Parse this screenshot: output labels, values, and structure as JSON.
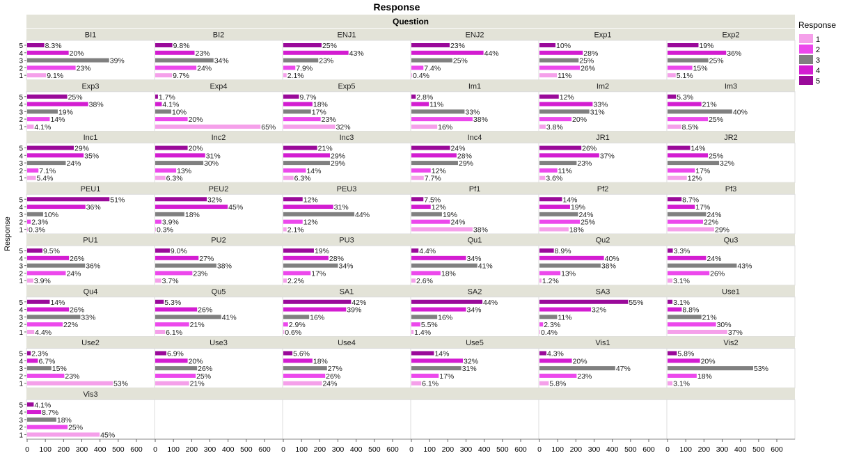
{
  "chart_data": {
    "type": "bar",
    "orientation": "horizontal",
    "title": "Response",
    "facet_header": "Question",
    "ylabel": "Response",
    "legend": {
      "title": "Response",
      "placement": "right",
      "items": [
        {
          "label": "1",
          "color": "#f5a0ea"
        },
        {
          "label": "2",
          "color": "#ec48ec"
        },
        {
          "label": "3",
          "color": "#808080"
        },
        {
          "label": "4",
          "color": "#d31dd1"
        },
        {
          "label": "5",
          "color": "#9a0a9a"
        }
      ]
    },
    "categories": [
      "5",
      "4",
      "3",
      "2",
      "1"
    ],
    "xlim": [
      0,
      600
    ],
    "xticks": [
      "0",
      "100",
      "200",
      "300",
      "400",
      "500",
      "600"
    ],
    "grid": true,
    "panels": [
      {
        "name": "BI1",
        "values": [
          94,
          228,
          450,
          266,
          104
        ],
        "labels": [
          "8.3%",
          "20%",
          "39%",
          "23%",
          "9.1%"
        ]
      },
      {
        "name": "BI2",
        "values": [
          94,
          216,
          320,
          226,
          92
        ],
        "labels": [
          "9.8%",
          "23%",
          "34%",
          "24%",
          "9.7%"
        ]
      },
      {
        "name": "ENJ1",
        "values": [
          210,
          358,
          192,
          66,
          18
        ],
        "labels": [
          "25%",
          "43%",
          "23%",
          "7.9%",
          "2.1%"
        ]
      },
      {
        "name": "ENJ2",
        "values": [
          210,
          396,
          225,
          66,
          4
        ],
        "labels": [
          "23%",
          "44%",
          "25%",
          "7.4%",
          "0.4%"
        ]
      },
      {
        "name": "Exp1",
        "values": [
          88,
          238,
          215,
          222,
          96
        ],
        "labels": [
          "10%",
          "28%",
          "25%",
          "26%",
          "11%"
        ]
      },
      {
        "name": "Exp2",
        "values": [
          170,
          322,
          224,
          136,
          45
        ],
        "labels": [
          "19%",
          "36%",
          "25%",
          "15%",
          "5.1%"
        ]
      },
      {
        "name": "Exp3",
        "values": [
          220,
          335,
          168,
          124,
          36
        ],
        "labels": [
          "25%",
          "38%",
          "19%",
          "14%",
          "4.1%"
        ]
      },
      {
        "name": "Exp4",
        "values": [
          15,
          36,
          88,
          178,
          578
        ],
        "labels": [
          "1.7%",
          "4.1%",
          "10%",
          "20%",
          "65%"
        ]
      },
      {
        "name": "Exp5",
        "values": [
          86,
          160,
          152,
          205,
          285
        ],
        "labels": [
          "9.7%",
          "18%",
          "17%",
          "23%",
          "32%"
        ]
      },
      {
        "name": "Im1",
        "values": [
          24,
          96,
          292,
          336,
          142
        ],
        "labels": [
          "2.8%",
          "11%",
          "33%",
          "38%",
          "16%"
        ]
      },
      {
        "name": "Im2",
        "values": [
          106,
          292,
          274,
          176,
          34
        ],
        "labels": [
          "12%",
          "33%",
          "31%",
          "20%",
          "3.8%"
        ]
      },
      {
        "name": "Im3",
        "values": [
          47,
          186,
          355,
          222,
          75
        ],
        "labels": [
          "5.3%",
          "21%",
          "40%",
          "25%",
          "8.5%"
        ]
      },
      {
        "name": "Inc1",
        "values": [
          256,
          310,
          212,
          62,
          48
        ],
        "labels": [
          "29%",
          "35%",
          "24%",
          "7.1%",
          "5.4%"
        ]
      },
      {
        "name": "Inc2",
        "values": [
          178,
          274,
          264,
          115,
          56
        ],
        "labels": [
          "20%",
          "31%",
          "30%",
          "13%",
          "6.3%"
        ]
      },
      {
        "name": "Inc3",
        "values": [
          186,
          256,
          256,
          124,
          56
        ],
        "labels": [
          "21%",
          "29%",
          "29%",
          "14%",
          "6.3%"
        ]
      },
      {
        "name": "Inc4",
        "values": [
          212,
          248,
          256,
          106,
          68
        ],
        "labels": [
          "24%",
          "28%",
          "29%",
          "12%",
          "7.7%"
        ]
      },
      {
        "name": "JR1",
        "values": [
          230,
          328,
          204,
          98,
          32
        ],
        "labels": [
          "26%",
          "37%",
          "23%",
          "11%",
          "3.6%"
        ]
      },
      {
        "name": "JR2",
        "values": [
          124,
          222,
          283,
          150,
          106
        ],
        "labels": [
          "14%",
          "25%",
          "32%",
          "17%",
          "12%"
        ]
      },
      {
        "name": "PEU1",
        "values": [
          452,
          320,
          88,
          20,
          3
        ],
        "labels": [
          "51%",
          "36%",
          "10%",
          "2.3%",
          "0.3%"
        ]
      },
      {
        "name": "PEU2",
        "values": [
          283,
          398,
          160,
          34,
          3
        ],
        "labels": [
          "32%",
          "45%",
          "18%",
          "3.9%",
          "0.3%"
        ]
      },
      {
        "name": "PEU3",
        "values": [
          106,
          274,
          390,
          106,
          18
        ],
        "labels": [
          "12%",
          "31%",
          "44%",
          "12%",
          "2.1%"
        ]
      },
      {
        "name": "Pf1",
        "values": [
          66,
          106,
          168,
          212,
          336
        ],
        "labels": [
          "7.5%",
          "12%",
          "19%",
          "24%",
          "38%"
        ]
      },
      {
        "name": "Pf2",
        "values": [
          124,
          168,
          212,
          222,
          160
        ],
        "labels": [
          "14%",
          "19%",
          "24%",
          "25%",
          "18%"
        ]
      },
      {
        "name": "Pf3",
        "values": [
          77,
          150,
          212,
          195,
          256
        ],
        "labels": [
          "8.7%",
          "17%",
          "24%",
          "22%",
          "29%"
        ]
      },
      {
        "name": "PU1",
        "values": [
          84,
          230,
          318,
          212,
          34
        ],
        "labels": [
          "9.5%",
          "26%",
          "36%",
          "24%",
          "3.9%"
        ]
      },
      {
        "name": "PU2",
        "values": [
          80,
          238,
          336,
          204,
          33
        ],
        "labels": [
          "9.0%",
          "27%",
          "38%",
          "23%",
          "3.7%"
        ]
      },
      {
        "name": "PU3",
        "values": [
          168,
          248,
          300,
          150,
          19
        ],
        "labels": [
          "19%",
          "28%",
          "34%",
          "17%",
          "2.2%"
        ]
      },
      {
        "name": "Qu1",
        "values": [
          39,
          300,
          362,
          160,
          23
        ],
        "labels": [
          "4.4%",
          "34%",
          "41%",
          "18%",
          "2.6%"
        ]
      },
      {
        "name": "Qu2",
        "values": [
          79,
          354,
          336,
          115,
          11
        ],
        "labels": [
          "8.9%",
          "40%",
          "38%",
          "13%",
          "1.2%"
        ]
      },
      {
        "name": "Qu3",
        "values": [
          29,
          212,
          380,
          230,
          27
        ],
        "labels": [
          "3.3%",
          "24%",
          "43%",
          "26%",
          "3.1%"
        ]
      },
      {
        "name": "Qu4",
        "values": [
          124,
          230,
          292,
          195,
          39
        ],
        "labels": [
          "14%",
          "26%",
          "33%",
          "22%",
          "4.4%"
        ]
      },
      {
        "name": "Qu5",
        "values": [
          47,
          230,
          362,
          186,
          54
        ],
        "labels": [
          "5.3%",
          "26%",
          "41%",
          "21%",
          "6.1%"
        ]
      },
      {
        "name": "SA1",
        "values": [
          372,
          345,
          142,
          26,
          5
        ],
        "labels": [
          "42%",
          "39%",
          "16%",
          "2.9%",
          "0.6%"
        ]
      },
      {
        "name": "SA2",
        "values": [
          390,
          300,
          142,
          49,
          12
        ],
        "labels": [
          "44%",
          "34%",
          "16%",
          "5.5%",
          "1.4%"
        ]
      },
      {
        "name": "SA3",
        "values": [
          487,
          283,
          97,
          20,
          4
        ],
        "labels": [
          "55%",
          "32%",
          "11%",
          "2.3%",
          "0.4%"
        ]
      },
      {
        "name": "Use1",
        "values": [
          27,
          78,
          186,
          266,
          328
        ],
        "labels": [
          "3.1%",
          "8.8%",
          "21%",
          "30%",
          "37%"
        ]
      },
      {
        "name": "Use2",
        "values": [
          20,
          59,
          133,
          204,
          470
        ],
        "labels": [
          "2.3%",
          "6.7%",
          "15%",
          "23%",
          "53%"
        ]
      },
      {
        "name": "Use3",
        "values": [
          61,
          178,
          230,
          222,
          186
        ],
        "labels": [
          "6.9%",
          "20%",
          "26%",
          "25%",
          "21%"
        ]
      },
      {
        "name": "Use4",
        "values": [
          50,
          160,
          240,
          230,
          212
        ],
        "labels": [
          "5.6%",
          "18%",
          "27%",
          "26%",
          "24%"
        ]
      },
      {
        "name": "Use5",
        "values": [
          124,
          283,
          274,
          150,
          54
        ],
        "labels": [
          "14%",
          "32%",
          "31%",
          "17%",
          "6.1%"
        ]
      },
      {
        "name": "Vis1",
        "values": [
          38,
          178,
          416,
          204,
          51
        ],
        "labels": [
          "4.3%",
          "20%",
          "47%",
          "23%",
          "5.8%"
        ]
      },
      {
        "name": "Vis2",
        "values": [
          51,
          178,
          470,
          160,
          27
        ],
        "labels": [
          "5.8%",
          "20%",
          "53%",
          "18%",
          "3.1%"
        ]
      },
      {
        "name": "Vis3",
        "values": [
          36,
          77,
          160,
          222,
          398
        ],
        "labels": [
          "4.1%",
          "8.7%",
          "18%",
          "25%",
          "45%"
        ]
      }
    ]
  }
}
